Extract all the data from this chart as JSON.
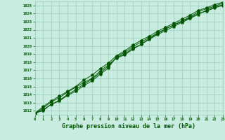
{
  "xlabel": "Graphe pression niveau de la mer (hPa)",
  "xlim": [
    0,
    23
  ],
  "ylim": [
    1011.5,
    1025.5
  ],
  "yticks": [
    1012,
    1013,
    1014,
    1015,
    1016,
    1017,
    1018,
    1019,
    1020,
    1021,
    1022,
    1023,
    1024,
    1025
  ],
  "xticks": [
    0,
    1,
    2,
    3,
    4,
    5,
    6,
    7,
    8,
    9,
    10,
    11,
    12,
    13,
    14,
    15,
    16,
    17,
    18,
    19,
    20,
    21,
    22,
    23
  ],
  "bg_color": "#c8ede0",
  "grid_color": "#99ccbb",
  "line_color": "#005500",
  "line1_y": [
    1011.7,
    1012.1,
    1012.8,
    1013.2,
    1013.9,
    1014.4,
    1015.1,
    1015.7,
    1016.5,
    1017.3,
    1018.7,
    1019.2,
    1019.9,
    1020.5,
    1021.0,
    1021.6,
    1022.1,
    1022.6,
    1023.0,
    1023.5,
    1024.0,
    1024.3,
    1024.7,
    1025.0
  ],
  "line2_y": [
    1011.7,
    1012.0,
    1012.8,
    1013.3,
    1014.0,
    1014.6,
    1015.3,
    1015.9,
    1016.7,
    1017.5,
    1018.6,
    1019.0,
    1019.7,
    1020.2,
    1020.8,
    1021.4,
    1021.9,
    1022.4,
    1022.9,
    1023.4,
    1023.9,
    1024.4,
    1024.8,
    1025.1
  ],
  "line3_y": [
    1011.7,
    1012.3,
    1013.1,
    1013.6,
    1014.3,
    1014.9,
    1015.5,
    1016.0,
    1016.9,
    1017.7,
    1018.5,
    1018.9,
    1019.6,
    1020.2,
    1020.9,
    1021.5,
    1022.1,
    1022.6,
    1023.1,
    1023.6,
    1024.2,
    1024.6,
    1024.9,
    1025.3
  ],
  "line4_y": [
    1011.7,
    1012.5,
    1013.2,
    1013.8,
    1014.4,
    1015.0,
    1015.8,
    1016.4,
    1017.2,
    1017.9,
    1018.8,
    1019.4,
    1020.1,
    1020.7,
    1021.2,
    1021.8,
    1022.3,
    1022.8,
    1023.3,
    1023.8,
    1024.4,
    1024.7,
    1025.1,
    1025.4
  ]
}
